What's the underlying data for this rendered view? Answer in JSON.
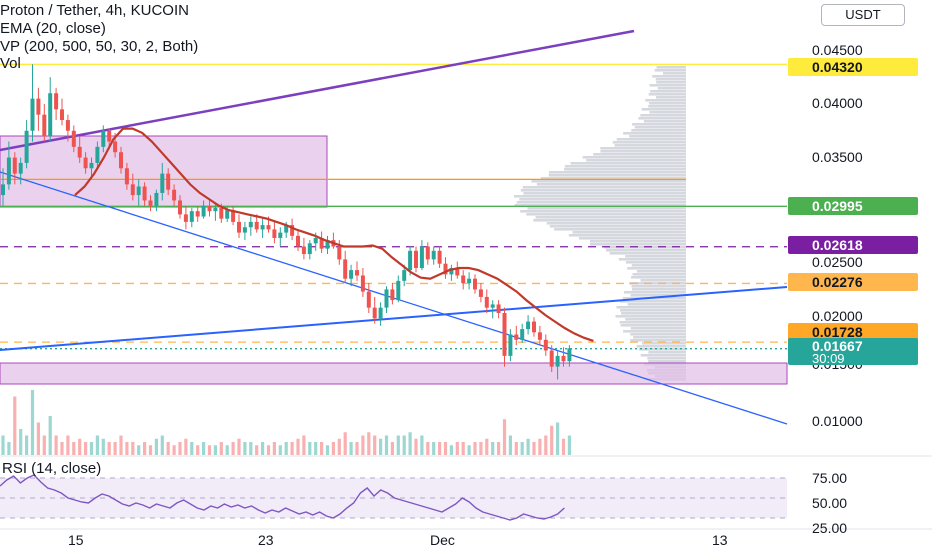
{
  "legend": {
    "title": "Proton / Tether, 4h, KUCOIN",
    "ema": "EMA (20, close)",
    "vp": "VP (200, 500, 50, 30, 2, Both)",
    "vol": "Vol"
  },
  "currency_button": "USDT",
  "price_axis": [
    "0.04500",
    "0.04000",
    "0.03500",
    "0.02500",
    "0.02000",
    "0.01000"
  ],
  "price_axis_partial": "0.01500",
  "price_tags": [
    {
      "text": "0.04320",
      "bg": "#ffeb3b",
      "fg": "#131722"
    },
    {
      "text": "0.02995",
      "bg": "#4caf50",
      "fg": "#ffffff"
    },
    {
      "text": "0.02618",
      "bg": "#7b1fa2",
      "fg": "#ffffff"
    },
    {
      "text": "0.02276",
      "bg": "#ffb74d",
      "fg": "#131722"
    },
    {
      "text": "0.01728",
      "bg": "#ffa726",
      "fg": "#131722"
    }
  ],
  "last_price": {
    "price": "0.01667",
    "countdown": "30:09",
    "bg": "#26a69a"
  },
  "rsi": {
    "legend": "RSI (14, close)",
    "axis": [
      "75.00",
      "50.00",
      "25.00"
    ]
  },
  "time_axis": [
    "15",
    "23",
    "Dec",
    "13"
  ],
  "colors": {
    "up": "#26a69a",
    "down": "#ef5350",
    "ema": "#c0392b",
    "vp": "#d1d4dc",
    "rsi_line": "#7e57c2",
    "rsi_band": "#ede7f6",
    "zone": "#e1bee7",
    "trend_purple": "#7b3fbf",
    "trend_blue": "#2962ff"
  },
  "chart_data": {
    "type": "candlestick",
    "title": "Proton / Tether, 4h, KUCOIN",
    "ylim": [
      0.0075,
      0.0475
    ],
    "x_ticks": [
      "15",
      "23",
      "Dec",
      "13"
    ],
    "candles": [
      [
        0.031,
        0.0335,
        0.03,
        0.032
      ],
      [
        0.032,
        0.036,
        0.0315,
        0.0345
      ],
      [
        0.0345,
        0.035,
        0.032,
        0.033
      ],
      [
        0.033,
        0.0345,
        0.032,
        0.034
      ],
      [
        0.034,
        0.038,
        0.0335,
        0.037
      ],
      [
        0.037,
        0.0432,
        0.036,
        0.04
      ],
      [
        0.04,
        0.041,
        0.037,
        0.0385
      ],
      [
        0.0385,
        0.0395,
        0.036,
        0.0365
      ],
      [
        0.0365,
        0.042,
        0.036,
        0.0405
      ],
      [
        0.0405,
        0.041,
        0.038,
        0.039
      ],
      [
        0.039,
        0.04,
        0.0375,
        0.038
      ],
      [
        0.038,
        0.0385,
        0.036,
        0.037
      ],
      [
        0.037,
        0.0375,
        0.035,
        0.0355
      ],
      [
        0.0355,
        0.0365,
        0.034,
        0.0345
      ],
      [
        0.0345,
        0.035,
        0.033,
        0.0335
      ],
      [
        0.0335,
        0.0345,
        0.0325,
        0.034
      ],
      [
        0.034,
        0.036,
        0.0335,
        0.0355
      ],
      [
        0.0355,
        0.0375,
        0.035,
        0.037
      ],
      [
        0.037,
        0.0372,
        0.0355,
        0.036
      ],
      [
        0.036,
        0.0368,
        0.0345,
        0.035
      ],
      [
        0.035,
        0.0355,
        0.033,
        0.0335
      ],
      [
        0.0335,
        0.034,
        0.0315,
        0.032
      ],
      [
        0.032,
        0.033,
        0.0305,
        0.031
      ],
      [
        0.031,
        0.0325,
        0.03,
        0.0318
      ],
      [
        0.0318,
        0.0322,
        0.03,
        0.0305
      ],
      [
        0.0305,
        0.031,
        0.0295,
        0.03
      ],
      [
        0.03,
        0.0315,
        0.0295,
        0.0312
      ],
      [
        0.0312,
        0.034,
        0.0305,
        0.033
      ],
      [
        0.033,
        0.0335,
        0.031,
        0.0315
      ],
      [
        0.0315,
        0.032,
        0.03,
        0.0305
      ],
      [
        0.0305,
        0.031,
        0.0288,
        0.0292
      ],
      [
        0.0292,
        0.03,
        0.0278,
        0.0285
      ],
      [
        0.0285,
        0.0298,
        0.028,
        0.0295
      ],
      [
        0.0295,
        0.03,
        0.0285,
        0.029
      ],
      [
        0.029,
        0.0305,
        0.0288,
        0.03
      ],
      [
        0.03,
        0.0306,
        0.029,
        0.0295
      ],
      [
        0.0295,
        0.0302,
        0.0286,
        0.0298
      ],
      [
        0.0298,
        0.0302,
        0.0284,
        0.0288
      ],
      [
        0.0288,
        0.03,
        0.0285,
        0.0296
      ],
      [
        0.0296,
        0.03,
        0.0282,
        0.0285
      ],
      [
        0.0285,
        0.0292,
        0.027,
        0.0275
      ],
      [
        0.0275,
        0.0285,
        0.0268,
        0.028
      ],
      [
        0.028,
        0.029,
        0.0272,
        0.0285
      ],
      [
        0.0285,
        0.0292,
        0.0275,
        0.0278
      ],
      [
        0.0278,
        0.0288,
        0.027,
        0.0282
      ],
      [
        0.0282,
        0.029,
        0.0275,
        0.0278
      ],
      [
        0.0278,
        0.0286,
        0.0265,
        0.027
      ],
      [
        0.027,
        0.028,
        0.0262,
        0.0275
      ],
      [
        0.0275,
        0.0285,
        0.027,
        0.0282
      ],
      [
        0.0282,
        0.0288,
        0.0268,
        0.0272
      ],
      [
        0.0272,
        0.0278,
        0.0258,
        0.0262
      ],
      [
        0.0262,
        0.027,
        0.025,
        0.0255
      ],
      [
        0.0255,
        0.0268,
        0.025,
        0.0265
      ],
      [
        0.0265,
        0.0275,
        0.0258,
        0.027
      ],
      [
        0.027,
        0.0276,
        0.0256,
        0.026
      ],
      [
        0.026,
        0.0272,
        0.0255,
        0.0268
      ],
      [
        0.0268,
        0.0275,
        0.026,
        0.0262
      ],
      [
        0.0262,
        0.0268,
        0.0245,
        0.025
      ],
      [
        0.025,
        0.0258,
        0.0228,
        0.0232
      ],
      [
        0.0232,
        0.0245,
        0.0225,
        0.024
      ],
      [
        0.024,
        0.0248,
        0.023,
        0.0235
      ],
      [
        0.0235,
        0.0242,
        0.0215,
        0.022
      ],
      [
        0.022,
        0.0228,
        0.02,
        0.0205
      ],
      [
        0.0205,
        0.0215,
        0.019,
        0.0195
      ],
      [
        0.0195,
        0.021,
        0.0188,
        0.0205
      ],
      [
        0.0205,
        0.0225,
        0.02,
        0.0222
      ],
      [
        0.0222,
        0.0228,
        0.0208,
        0.0212
      ],
      [
        0.0212,
        0.0235,
        0.021,
        0.023
      ],
      [
        0.023,
        0.0245,
        0.0225,
        0.024
      ],
      [
        0.024,
        0.0262,
        0.0235,
        0.0258
      ],
      [
        0.0258,
        0.0262,
        0.0238,
        0.0242
      ],
      [
        0.0242,
        0.0268,
        0.024,
        0.0262
      ],
      [
        0.0262,
        0.0266,
        0.0245,
        0.025
      ],
      [
        0.025,
        0.0262,
        0.0245,
        0.0258
      ],
      [
        0.0258,
        0.0262,
        0.0242,
        0.0246
      ],
      [
        0.0246,
        0.0252,
        0.0232,
        0.0236
      ],
      [
        0.0236,
        0.0245,
        0.023,
        0.0242
      ],
      [
        0.0242,
        0.0248,
        0.0232,
        0.0235
      ],
      [
        0.0235,
        0.024,
        0.0222,
        0.0228
      ],
      [
        0.0228,
        0.0238,
        0.0222,
        0.0232
      ],
      [
        0.0232,
        0.0236,
        0.0218,
        0.0222
      ],
      [
        0.0222,
        0.0228,
        0.021,
        0.0215
      ],
      [
        0.0215,
        0.0222,
        0.02,
        0.0205
      ],
      [
        0.0205,
        0.0212,
        0.0195,
        0.0208
      ],
      [
        0.0208,
        0.0212,
        0.0195,
        0.02
      ],
      [
        0.02,
        0.0205,
        0.015,
        0.016
      ],
      [
        0.016,
        0.0185,
        0.0155,
        0.018
      ],
      [
        0.018,
        0.0188,
        0.017,
        0.0175
      ],
      [
        0.0175,
        0.019,
        0.0172,
        0.0185
      ],
      [
        0.0185,
        0.0198,
        0.018,
        0.0192
      ],
      [
        0.0192,
        0.0196,
        0.0178,
        0.0182
      ],
      [
        0.0182,
        0.0188,
        0.017,
        0.0175
      ],
      [
        0.0175,
        0.018,
        0.016,
        0.0165
      ],
      [
        0.0165,
        0.017,
        0.0145,
        0.015
      ],
      [
        0.015,
        0.0165,
        0.0138,
        0.016
      ],
      [
        0.016,
        0.0168,
        0.015,
        0.0155
      ],
      [
        0.0155,
        0.017,
        0.015,
        0.0167
      ]
    ],
    "ema20": [
      0.031,
      0.0318,
      0.033,
      0.0345,
      0.0362,
      0.0372,
      0.0372,
      0.0368,
      0.036,
      0.035,
      0.034,
      0.033,
      0.032,
      0.0312,
      0.0306,
      0.03,
      0.0296,
      0.0294,
      0.0292,
      0.029,
      0.0288,
      0.0285,
      0.0282,
      0.0278,
      0.0275,
      0.0272,
      0.0268,
      0.0265,
      0.0262,
      0.0262,
      0.0262,
      0.0263,
      0.026,
      0.0252,
      0.0245,
      0.0238,
      0.0233,
      0.0232,
      0.0236,
      0.024,
      0.0242,
      0.0242,
      0.024,
      0.0236,
      0.0232,
      0.0226,
      0.022,
      0.0212,
      0.0205,
      0.0198,
      0.0192,
      0.0186,
      0.0181,
      0.0177,
      0.0174
    ],
    "volume_relative": [
      0.3,
      0.2,
      0.9,
      0.4,
      0.3,
      1.0,
      0.5,
      0.3,
      0.6,
      0.3,
      0.2,
      0.3,
      0.2,
      0.25,
      0.2,
      0.2,
      0.3,
      0.25,
      0.2,
      0.2,
      0.3,
      0.2,
      0.2,
      0.15,
      0.2,
      0.15,
      0.25,
      0.3,
      0.2,
      0.15,
      0.2,
      0.25,
      0.2,
      0.15,
      0.2,
      0.15,
      0.15,
      0.2,
      0.15,
      0.2,
      0.25,
      0.2,
      0.2,
      0.15,
      0.2,
      0.15,
      0.2,
      0.15,
      0.2,
      0.2,
      0.25,
      0.3,
      0.2,
      0.2,
      0.2,
      0.15,
      0.2,
      0.25,
      0.35,
      0.2,
      0.2,
      0.3,
      0.35,
      0.3,
      0.25,
      0.3,
      0.2,
      0.3,
      0.3,
      0.35,
      0.25,
      0.3,
      0.2,
      0.2,
      0.2,
      0.2,
      0.15,
      0.2,
      0.2,
      0.15,
      0.2,
      0.2,
      0.25,
      0.2,
      0.2,
      0.55,
      0.3,
      0.2,
      0.2,
      0.25,
      0.2,
      0.25,
      0.3,
      0.45,
      0.5,
      0.25,
      0.3
    ],
    "rsi": [
      62,
      68,
      72,
      65,
      70,
      73,
      66,
      60,
      58,
      55,
      50,
      48,
      46,
      45,
      50,
      54,
      52,
      48,
      44,
      42,
      45,
      43,
      40,
      44,
      42,
      40,
      45,
      48,
      44,
      40,
      38,
      42,
      40,
      44,
      41,
      43,
      40,
      42,
      38,
      35,
      38,
      36,
      40,
      37,
      34,
      36,
      33,
      36,
      32,
      30,
      34,
      40,
      45,
      55,
      60,
      52,
      58,
      55,
      50,
      48,
      46,
      44,
      42,
      40,
      38,
      36,
      40,
      44,
      50,
      46,
      40,
      36,
      34,
      32,
      30,
      28,
      30,
      34,
      32,
      30,
      29,
      31,
      34,
      40
    ],
    "rsi_levels": [
      70,
      50,
      30
    ],
    "rsi_ylim": [
      20,
      82
    ],
    "horizontal_levels": [
      {
        "price": 0.0432,
        "color": "#ffeb3b",
        "style": "solid"
      },
      {
        "price": 0.032,
        "color": "#ff9800",
        "style": "solid"
      },
      {
        "price": 0.02995,
        "color": "#4caf50",
        "style": "solid"
      },
      {
        "price": 0.02618,
        "color": "#7b1fa2",
        "style": "dashed"
      },
      {
        "price": 0.02276,
        "color": "#ffb74d",
        "style": "dashed"
      },
      {
        "price": 0.01728,
        "color": "#ffb74d",
        "style": "dashed"
      },
      {
        "price": 0.01667,
        "color": "#26a69a",
        "style": "dotted"
      }
    ]
  }
}
